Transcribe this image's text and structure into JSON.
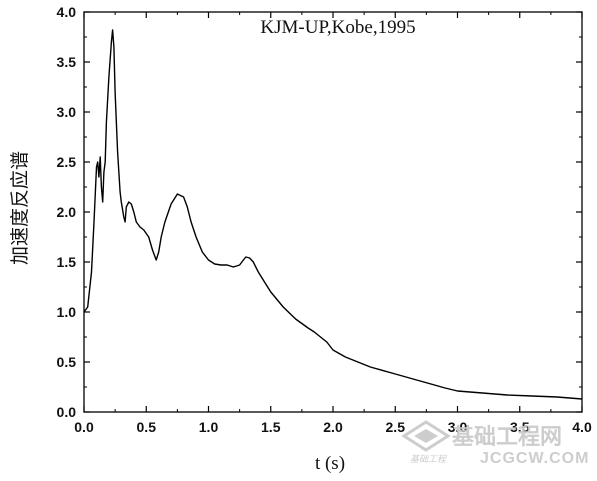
{
  "chart_data": {
    "type": "line",
    "title": "KJM-UP,Kobe,1995",
    "xlabel": "t (s)",
    "ylabel": "加速度反应谱",
    "xlim": [
      0.0,
      4.0
    ],
    "ylim": [
      0.0,
      4.0
    ],
    "xticks": [
      "0.0",
      "0.5",
      "1.0",
      "1.5",
      "2.0",
      "2.5",
      "3.0",
      "3.5",
      "4.0"
    ],
    "yticks": [
      "0.0",
      "0.5",
      "1.0",
      "1.5",
      "2.0",
      "2.5",
      "3.0",
      "3.5",
      "4.0"
    ],
    "grid": false,
    "legend": "none",
    "line_color": "#000000",
    "series": [
      {
        "x": [
          0.0,
          0.03,
          0.06,
          0.08,
          0.1,
          0.11,
          0.12,
          0.13,
          0.14,
          0.15,
          0.16,
          0.17,
          0.18,
          0.2,
          0.22,
          0.23,
          0.24,
          0.25,
          0.27,
          0.29,
          0.3,
          0.32,
          0.33,
          0.34,
          0.36,
          0.38,
          0.4,
          0.42,
          0.45,
          0.48,
          0.52,
          0.55,
          0.58,
          0.6,
          0.62,
          0.65,
          0.7,
          0.75,
          0.8,
          0.83,
          0.86,
          0.9,
          0.95,
          1.0,
          1.05,
          1.1,
          1.15,
          1.2,
          1.25,
          1.28,
          1.3,
          1.33,
          1.36,
          1.4,
          1.45,
          1.5,
          1.6,
          1.7,
          1.8,
          1.85,
          1.9,
          1.95,
          2.0,
          2.1,
          2.2,
          2.3,
          2.5,
          2.7,
          2.9,
          3.0,
          3.2,
          3.4,
          3.6,
          3.8,
          4.0
        ],
        "y": [
          1.0,
          1.05,
          1.4,
          1.9,
          2.45,
          2.5,
          2.35,
          2.55,
          2.25,
          2.1,
          2.4,
          2.5,
          2.9,
          3.35,
          3.7,
          3.82,
          3.65,
          3.2,
          2.6,
          2.2,
          2.1,
          1.95,
          1.9,
          2.05,
          2.1,
          2.08,
          2.0,
          1.9,
          1.85,
          1.82,
          1.75,
          1.62,
          1.52,
          1.6,
          1.75,
          1.9,
          2.08,
          2.18,
          2.15,
          2.05,
          1.9,
          1.75,
          1.6,
          1.52,
          1.48,
          1.47,
          1.47,
          1.45,
          1.47,
          1.52,
          1.55,
          1.54,
          1.5,
          1.4,
          1.3,
          1.2,
          1.05,
          0.93,
          0.84,
          0.8,
          0.75,
          0.7,
          0.62,
          0.55,
          0.5,
          0.45,
          0.38,
          0.31,
          0.24,
          0.21,
          0.19,
          0.17,
          0.16,
          0.15,
          0.13
        ]
      }
    ]
  },
  "watermark": {
    "main": "基础工程网",
    "url": "JCGCW.COM",
    "tiny": "基础工程"
  }
}
